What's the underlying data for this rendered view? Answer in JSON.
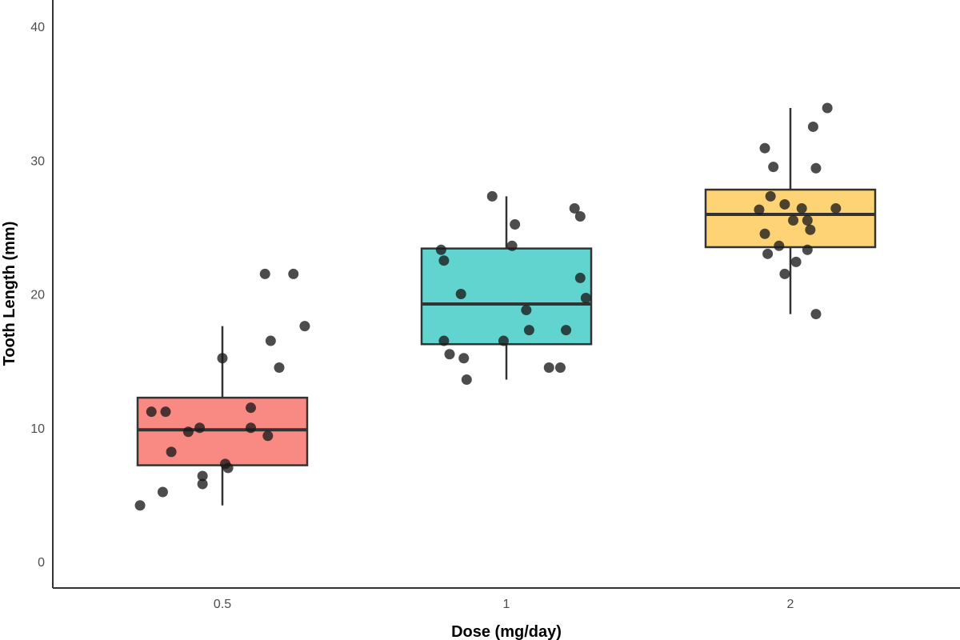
{
  "chart_data": {
    "type": "boxplot",
    "title": "",
    "xlabel": "Dose (mg/day)",
    "ylabel": "Tooth Length (mm)",
    "ylim": [
      -2,
      42
    ],
    "yticks": [
      0,
      10,
      20,
      30,
      40
    ],
    "grid": false,
    "categories": [
      "0.5",
      "1",
      "2"
    ],
    "colors": [
      "#F8766D",
      "#45CCC7",
      "#FDCB5D"
    ],
    "box_stats": [
      {
        "category": "0.5",
        "min": 4.2,
        "q1": 7.2,
        "median": 9.85,
        "q3": 12.25,
        "max": 17.6
      },
      {
        "category": "1",
        "min": 13.6,
        "q1": 16.25,
        "median": 19.25,
        "q3": 23.4,
        "max": 27.3
      },
      {
        "category": "2",
        "min": 18.5,
        "q1": 23.5,
        "median": 25.95,
        "q3": 27.8,
        "max": 33.9
      }
    ],
    "points": [
      {
        "category": "0.5",
        "jitter": [
          -0.29,
          -0.21,
          -0.07,
          -0.07,
          0.02,
          0.01,
          -0.18,
          0.16,
          -0.12,
          0.1,
          -0.08,
          -0.25,
          -0.2,
          0.1,
          0.2,
          0.0,
          0.17,
          0.29,
          0.15,
          0.25
        ],
        "values": [
          4.2,
          5.2,
          5.8,
          6.4,
          7.0,
          7.3,
          8.2,
          9.4,
          9.7,
          10.0,
          10.0,
          11.2,
          11.2,
          11.5,
          14.5,
          15.2,
          16.5,
          17.6,
          21.5,
          21.5
        ]
      },
      {
        "category": "1",
        "jitter": [
          -0.14,
          -0.15,
          -0.2,
          -0.22,
          0.15,
          0.19,
          0.08,
          0.21,
          0.07,
          0.28,
          -0.16,
          0.26,
          -0.22,
          -0.23,
          0.02,
          0.03,
          0.26,
          0.24,
          -0.05,
          -0.01
        ],
        "values": [
          13.6,
          15.2,
          15.5,
          16.5,
          14.5,
          14.5,
          17.3,
          17.3,
          18.8,
          19.7,
          20.0,
          21.2,
          22.5,
          23.3,
          23.6,
          25.2,
          25.8,
          26.4,
          27.3,
          16.5
        ]
      },
      {
        "category": "2",
        "jitter": [
          0.09,
          -0.02,
          0.02,
          -0.08,
          0.06,
          -0.04,
          -0.09,
          0.07,
          0.06,
          0.01,
          -0.11,
          0.16,
          0.04,
          -0.02,
          -0.07,
          0.09,
          -0.06,
          -0.09,
          0.08,
          0.13
        ],
        "values": [
          18.5,
          21.5,
          22.4,
          23.0,
          23.3,
          23.6,
          24.5,
          24.8,
          25.5,
          25.5,
          26.3,
          26.4,
          26.4,
          26.7,
          27.3,
          29.4,
          29.5,
          30.9,
          32.5,
          33.9
        ]
      }
    ]
  }
}
